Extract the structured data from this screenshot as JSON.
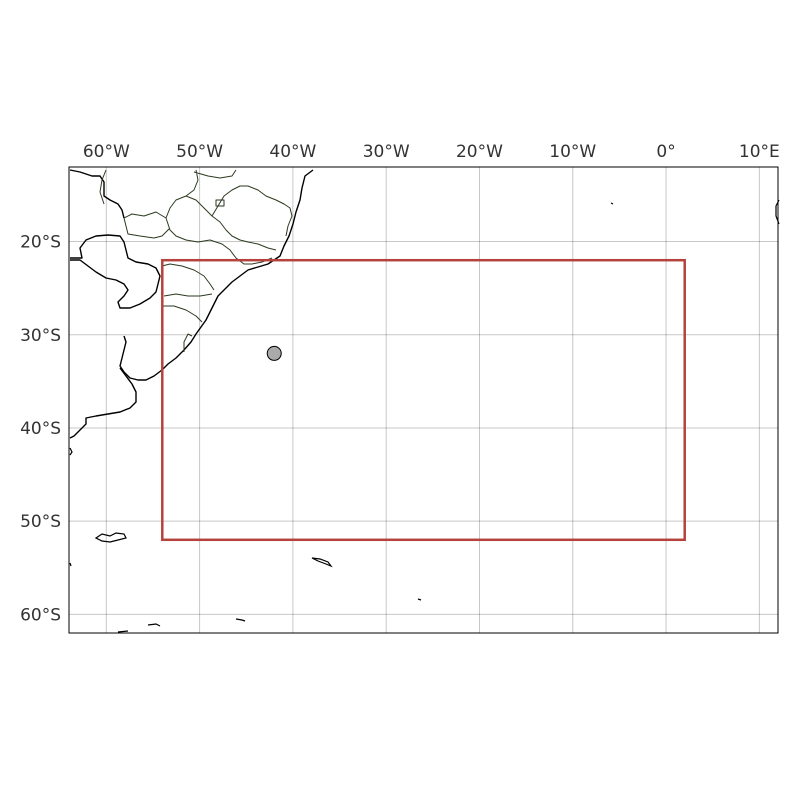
{
  "map": {
    "projection": "PlateCarree",
    "extent": {
      "lon_min": -64,
      "lon_max": 12,
      "lat_min": -62,
      "lat_max": -12
    },
    "lon_ticks": [
      {
        "value": -60,
        "label": "60°W"
      },
      {
        "value": -50,
        "label": "50°W"
      },
      {
        "value": -40,
        "label": "40°W"
      },
      {
        "value": -30,
        "label": "30°W"
      },
      {
        "value": -20,
        "label": "20°W"
      },
      {
        "value": -10,
        "label": "10°W"
      },
      {
        "value": 0,
        "label": "0°"
      },
      {
        "value": 10,
        "label": "10°E"
      }
    ],
    "lat_ticks": [
      {
        "value": -20,
        "label": "20°S"
      },
      {
        "value": -30,
        "label": "30°S"
      },
      {
        "value": -40,
        "label": "40°S"
      },
      {
        "value": -50,
        "label": "50°S"
      },
      {
        "value": -60,
        "label": "60°S"
      }
    ],
    "lon_labels_position": "top",
    "lat_labels_position": "left",
    "gridlines": true,
    "features": [
      "coastlines",
      "state-borders"
    ],
    "region_box": {
      "lon_min": -54,
      "lon_max": 2,
      "lat_min": -52,
      "lat_max": -22,
      "color": "#b5423c"
    },
    "point_marker": {
      "lon": -42,
      "lat": -32,
      "color": "#aaaaaa"
    }
  }
}
